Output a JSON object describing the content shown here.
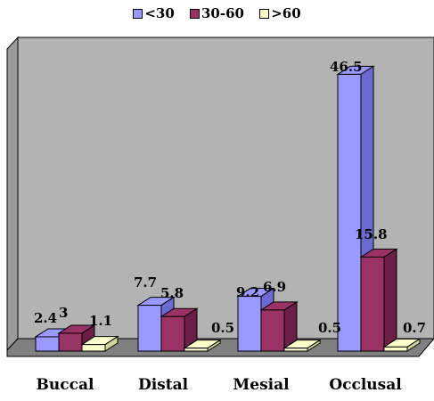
{
  "chart_data": {
    "type": "bar",
    "categories": [
      "Buccal",
      "Distal",
      "Mesial",
      "Occlusal"
    ],
    "series": [
      {
        "name": "<30",
        "values": [
          2.4,
          7.7,
          9.2,
          46.5
        ],
        "labels": [
          "2.4",
          "7.7",
          "9.2",
          "46.5"
        ],
        "color": "#9999ff",
        "side_color": "#6a6ad0"
      },
      {
        "name": "30-60",
        "values": [
          3,
          5.8,
          6.9,
          15.8
        ],
        "labels": [
          "3",
          "5.8",
          "6.9",
          "15.8"
        ],
        "color": "#993366",
        "side_color": "#6b1f45"
      },
      {
        "name": ">60",
        "values": [
          1.1,
          0.5,
          0.5,
          0.7
        ],
        "labels": [
          "1.1",
          "0.5",
          "0.5",
          "0.7"
        ],
        "color": "#ffffcc",
        "side_color": "#d4d49a"
      }
    ],
    "ylim": [
      0,
      50
    ],
    "grid": false,
    "legend_position": "top",
    "wall_color": "#b3b3b3",
    "floor_color": "#808080"
  }
}
